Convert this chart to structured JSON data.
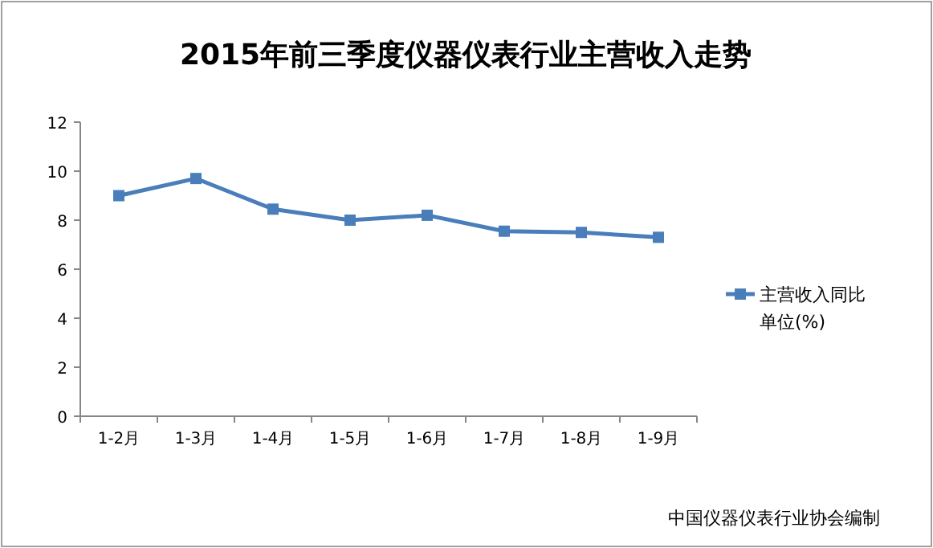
{
  "chart_data": {
    "type": "line",
    "title": "2015年前三季度仪器仪表行业主营收入走势",
    "categories": [
      "1-2月",
      "1-3月",
      "1-4月",
      "1-5月",
      "1-6月",
      "1-7月",
      "1-8月",
      "1-9月"
    ],
    "series": [
      {
        "name": "主营收入同比",
        "color": "#4a7ebb",
        "values": [
          9.0,
          9.7,
          8.45,
          8.0,
          8.2,
          7.55,
          7.5,
          7.3
        ]
      }
    ],
    "ylim": [
      0,
      12
    ],
    "yticks": [
      0,
      2,
      4,
      6,
      8,
      10,
      12
    ],
    "grid": false,
    "legend": "right",
    "marker": "square",
    "line_style": "solid",
    "annotations": [
      "单位(%)",
      "中国仪器仪表行业协会编制"
    ]
  }
}
